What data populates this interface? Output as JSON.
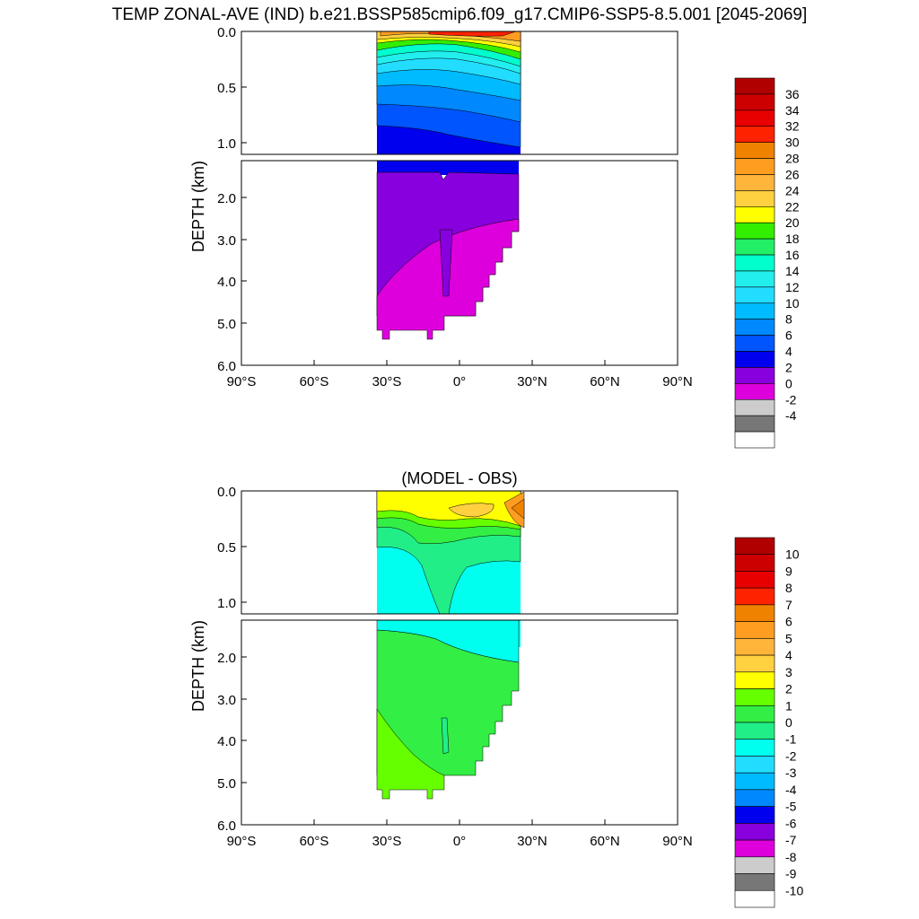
{
  "chart_data": [
    {
      "type": "contour",
      "title": "TEMP ZONAL-AVE (IND) b.e21.BSSP585cmip6.f09_g17.CMIP6-SSP5-8.5.001 [2045-2069]",
      "ylabel": "DEPTH (km)",
      "xlabel": "",
      "x_ticks": [
        "90°S",
        "60°S",
        "30°S",
        "0°",
        "30°N",
        "60°N",
        "90°N"
      ],
      "y_ticks_upper": [
        "0.0",
        "0.5",
        "1.0"
      ],
      "y_ticks_lower": [
        "2.0",
        "3.0",
        "4.0",
        "5.0",
        "6.0"
      ],
      "xlim": [
        -90,
        90
      ],
      "ylim_km": [
        0,
        6
      ],
      "data_lat_range": [
        -34,
        26
      ],
      "colorbar": {
        "labels": [
          "36",
          "34",
          "32",
          "30",
          "28",
          "26",
          "24",
          "22",
          "20",
          "18",
          "16",
          "14",
          "12",
          "10",
          "8",
          "6",
          "4",
          "2",
          "0",
          "-2",
          "-4"
        ],
        "colors": [
          "#b00000",
          "#cc0000",
          "#e80000",
          "#ff2200",
          "#ef8300",
          "#ff9d20",
          "#ffb43a",
          "#ffd040",
          "#ffff00",
          "#33ee00",
          "#22ee66",
          "#00ffcc",
          "#22eeee",
          "#22ddff",
          "#00bbff",
          "#0088ff",
          "#0055ff",
          "#0000ee",
          "#8800dd",
          "#dd00dd",
          "#cccccc",
          "#777777",
          "#ffffff"
        ]
      }
    },
    {
      "type": "contour",
      "title": "(MODEL - OBS)",
      "ylabel": "DEPTH (km)",
      "xlabel": "",
      "x_ticks": [
        "90°S",
        "60°S",
        "30°S",
        "0°",
        "30°N",
        "60°N",
        "90°N"
      ],
      "y_ticks_upper": [
        "0.0",
        "0.5",
        "1.0"
      ],
      "y_ticks_lower": [
        "2.0",
        "3.0",
        "4.0",
        "5.0",
        "6.0"
      ],
      "xlim": [
        -90,
        90
      ],
      "ylim_km": [
        0,
        6
      ],
      "data_lat_range": [
        -34,
        26
      ],
      "colorbar": {
        "labels": [
          "10",
          "9",
          "8",
          "7",
          "6",
          "5",
          "4",
          "3",
          "2",
          "1",
          "0",
          "-1",
          "-2",
          "-3",
          "-4",
          "-5",
          "-6",
          "-7",
          "-8",
          "-9",
          "-10"
        ],
        "colors": [
          "#b00000",
          "#cc0000",
          "#e80000",
          "#ff2200",
          "#ef8300",
          "#ff9d20",
          "#ffb43a",
          "#ffd040",
          "#ffff00",
          "#66ff00",
          "#33ee44",
          "#22ee88",
          "#00ffee",
          "#22ddff",
          "#00bbff",
          "#0088ff",
          "#0000ee",
          "#8800dd",
          "#dd00dd",
          "#cccccc",
          "#777777",
          "#ffffff"
        ]
      }
    }
  ]
}
